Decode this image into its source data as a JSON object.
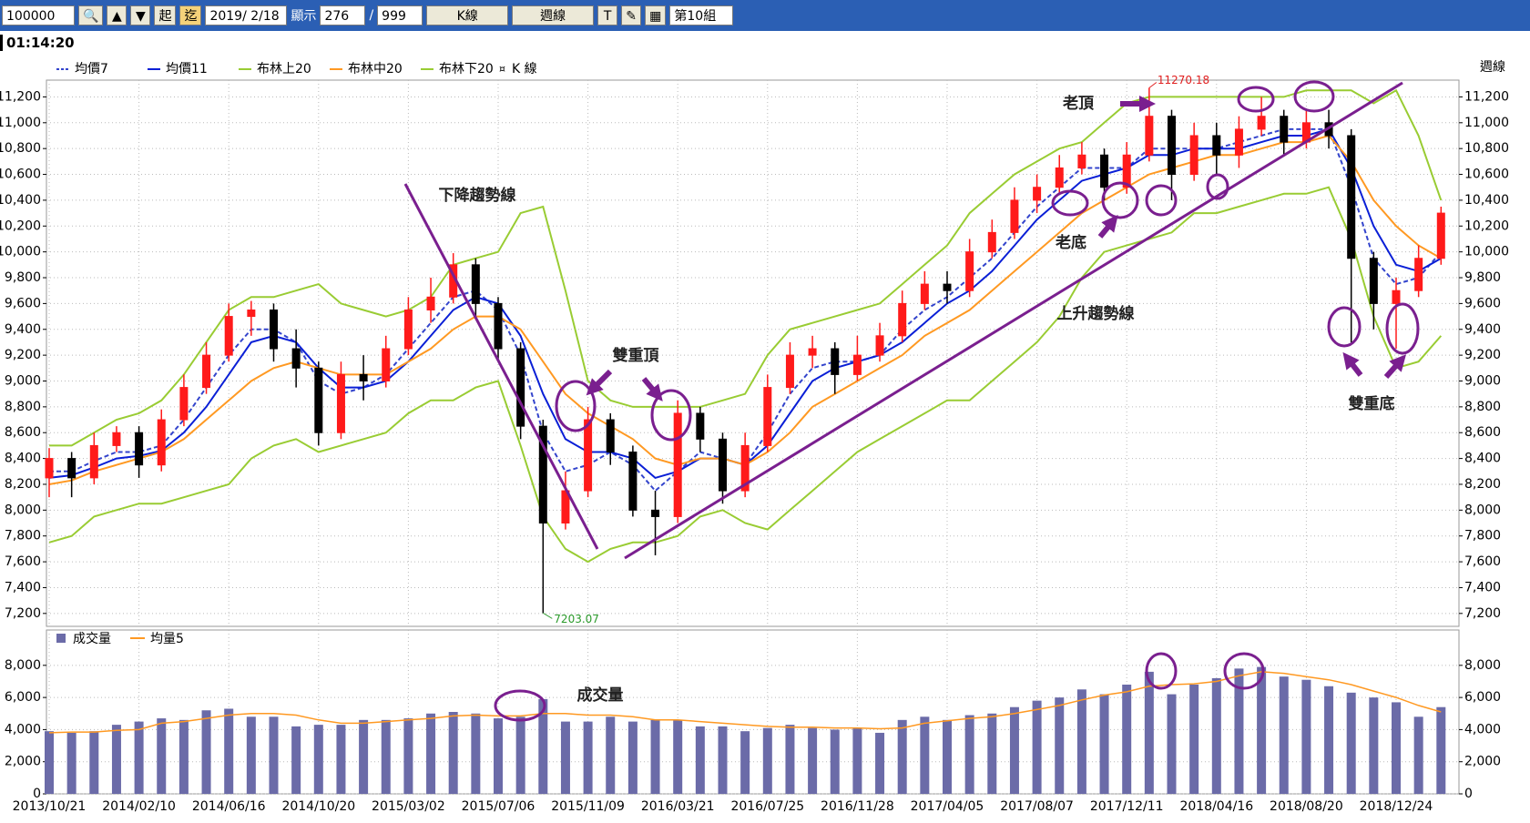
{
  "toolbar": {
    "code": 100000,
    "start_label": "起",
    "end_label": "迄",
    "date": "2019/ 2/18",
    "show_label": "顯示",
    "show_count": 276,
    "separator": "/",
    "max_count": 999,
    "chart_kind": "K線",
    "period": "週線",
    "text_tool": "T",
    "group": "第10組"
  },
  "clock": "01:14:20",
  "chart_data": [
    {
      "type": "candlestick",
      "y_axis_label": "週線",
      "ylim": [
        7100,
        11330
      ],
      "yticks": [
        {
          "value": 7200,
          "label": "7,200"
        },
        {
          "value": 7400,
          "label": "7,400"
        },
        {
          "value": 7600,
          "label": "7,600"
        },
        {
          "value": 7800,
          "label": "7,800"
        },
        {
          "value": 8000,
          "label": "8,000"
        },
        {
          "value": 8200,
          "label": "8,200"
        },
        {
          "value": 8400,
          "label": "8,400"
        },
        {
          "value": 8600,
          "label": "8,600"
        },
        {
          "value": 8800,
          "label": "8,800"
        },
        {
          "value": 9000,
          "label": "9,000"
        },
        {
          "value": 9200,
          "label": "9,200"
        },
        {
          "value": 9400,
          "label": "9,400"
        },
        {
          "value": 9600,
          "label": "9,600"
        },
        {
          "value": 9800,
          "label": "9,800"
        },
        {
          "value": 10000,
          "label": "10,000"
        },
        {
          "value": 10200,
          "label": "10,200"
        },
        {
          "value": 10400,
          "label": "10,400"
        },
        {
          "value": 10600,
          "label": "10,600"
        },
        {
          "value": 10800,
          "label": "10,800"
        },
        {
          "value": 11000,
          "label": "11,000"
        },
        {
          "value": 11200,
          "label": "11,200"
        }
      ],
      "grid": true,
      "candles": {
        "name": "K 線",
        "up_color": "#ff1a1a",
        "down_color": "#000000",
        "open": [
          8250,
          8400,
          8250,
          8500,
          8600,
          8350,
          8700,
          8950,
          9200,
          9500,
          9550,
          9250,
          9100,
          8600,
          9050,
          9000,
          9250,
          9550,
          9650,
          9900,
          9600,
          9250,
          8650,
          7900,
          8150,
          8700,
          8450,
          8000,
          7950,
          8750,
          8550,
          8150,
          8500,
          8950,
          9200,
          9250,
          9050,
          9200,
          9350,
          9600,
          9750,
          9700,
          10000,
          10150,
          10400,
          10500,
          10650,
          10750,
          10500,
          10750,
          11050,
          10600,
          10900,
          10750,
          10950,
          11050,
          10850,
          11000,
          10900,
          9950,
          9600,
          9700,
          9950
        ],
        "high": [
          8480,
          8450,
          8600,
          8650,
          8650,
          8780,
          9050,
          9300,
          9600,
          9620,
          9600,
          9400,
          9150,
          9150,
          9200,
          9350,
          9650,
          9800,
          9990,
          9950,
          9650,
          9300,
          8700,
          8300,
          8800,
          8750,
          8500,
          8150,
          8850,
          8800,
          8600,
          8600,
          9050,
          9300,
          9350,
          9300,
          9350,
          9450,
          9700,
          9850,
          9850,
          10100,
          10250,
          10500,
          10600,
          10750,
          10850,
          10800,
          10850,
          11270.18,
          11100,
          11000,
          11000,
          11050,
          11200,
          11100,
          11100,
          11100,
          10950,
          10000,
          9800,
          10050,
          10350
        ],
        "low": [
          8100,
          8100,
          8200,
          8450,
          8250,
          8300,
          8650,
          8900,
          9150,
          9350,
          9150,
          8950,
          8500,
          8550,
          8850,
          8950,
          9200,
          9450,
          9600,
          9500,
          9150,
          8550,
          7203.07,
          7850,
          8100,
          8350,
          7950,
          7650,
          7900,
          8450,
          8050,
          8100,
          8450,
          8900,
          9100,
          8900,
          9000,
          9150,
          9300,
          9550,
          9600,
          9650,
          9950,
          10100,
          10300,
          10450,
          10600,
          10400,
          10450,
          10700,
          10400,
          10550,
          10600,
          10650,
          10900,
          10750,
          10800,
          10800,
          9300,
          9400,
          9250,
          9650,
          9900
        ],
        "close": [
          8400,
          8250,
          8500,
          8600,
          8350,
          8700,
          8950,
          9200,
          9500,
          9550,
          9250,
          9100,
          8600,
          9050,
          9000,
          9250,
          9550,
          9650,
          9900,
          9600,
          9250,
          8650,
          7900,
          8150,
          8700,
          8450,
          8000,
          7950,
          8750,
          8550,
          8150,
          8500,
          8950,
          9200,
          9250,
          9050,
          9200,
          9350,
          9600,
          9750,
          9700,
          10000,
          10150,
          10400,
          10500,
          10650,
          10750,
          10500,
          10750,
          11050,
          10600,
          10900,
          10750,
          10950,
          11050,
          10850,
          11000,
          10900,
          9950,
          9600,
          9700,
          9950,
          10300
        ]
      },
      "series": [
        {
          "name": "均價7",
          "color": "#3344cc",
          "dashed": true,
          "values": [
            8300,
            8300,
            8380,
            8450,
            8450,
            8500,
            8700,
            8950,
            9200,
            9400,
            9400,
            9300,
            9000,
            8900,
            8950,
            9050,
            9250,
            9450,
            9650,
            9700,
            9550,
            9200,
            8600,
            8300,
            8350,
            8450,
            8350,
            8150,
            8300,
            8450,
            8400,
            8350,
            8600,
            8900,
            9100,
            9150,
            9150,
            9200,
            9400,
            9550,
            9650,
            9800,
            9950,
            10150,
            10350,
            10500,
            10650,
            10650,
            10650,
            10800,
            10800,
            10800,
            10800,
            10850,
            10900,
            10950,
            10950,
            10950,
            10500,
            9950,
            9750,
            9800,
            10000
          ]
        },
        {
          "name": "均價11",
          "color": "#0a1fd6",
          "dashed": false,
          "values": [
            8250,
            8270,
            8330,
            8400,
            8420,
            8460,
            8600,
            8800,
            9050,
            9300,
            9350,
            9300,
            9100,
            8950,
            8950,
            9000,
            9150,
            9350,
            9550,
            9650,
            9600,
            9350,
            8900,
            8550,
            8450,
            8450,
            8400,
            8250,
            8300,
            8400,
            8400,
            8350,
            8500,
            8750,
            9000,
            9100,
            9150,
            9200,
            9300,
            9450,
            9600,
            9700,
            9850,
            10050,
            10250,
            10400,
            10550,
            10600,
            10650,
            10750,
            10750,
            10800,
            10800,
            10800,
            10850,
            10900,
            10900,
            10950,
            10650,
            10200,
            9900,
            9850,
            9950
          ]
        },
        {
          "name": "布林上20",
          "color": "#99cc33",
          "dashed": false,
          "values": [
            8500,
            8500,
            8600,
            8700,
            8750,
            8850,
            9050,
            9300,
            9550,
            9650,
            9650,
            9700,
            9750,
            9600,
            9550,
            9500,
            9550,
            9650,
            9900,
            9950,
            10000,
            10300,
            10350,
            9700,
            9000,
            8850,
            8800,
            8800,
            8800,
            8800,
            8850,
            8900,
            9200,
            9400,
            9450,
            9500,
            9550,
            9600,
            9750,
            9900,
            10050,
            10300,
            10450,
            10600,
            10700,
            10800,
            10850,
            11000,
            11150,
            11200,
            11200,
            11200,
            11200,
            11200,
            11200,
            11200,
            11250,
            11250,
            11250,
            11150,
            11250,
            10900,
            10400
          ]
        },
        {
          "name": "布林中20",
          "color": "#ff9922",
          "dashed": false,
          "values": [
            8200,
            8230,
            8300,
            8350,
            8400,
            8450,
            8550,
            8700,
            8850,
            9000,
            9100,
            9150,
            9100,
            9050,
            9050,
            9050,
            9150,
            9250,
            9400,
            9500,
            9500,
            9400,
            9150,
            8900,
            8750,
            8650,
            8550,
            8400,
            8350,
            8400,
            8400,
            8350,
            8450,
            8600,
            8800,
            8900,
            9000,
            9100,
            9200,
            9350,
            9450,
            9550,
            9700,
            9850,
            10000,
            10150,
            10300,
            10400,
            10500,
            10600,
            10650,
            10700,
            10750,
            10750,
            10800,
            10850,
            10850,
            10900,
            10700,
            10400,
            10200,
            10050,
            9950
          ]
        },
        {
          "name": "布林下20",
          "color": "#99cc33",
          "dashed": false,
          "values": [
            7750,
            7800,
            7950,
            8000,
            8050,
            8050,
            8100,
            8150,
            8200,
            8400,
            8500,
            8550,
            8450,
            8500,
            8550,
            8600,
            8750,
            8850,
            8850,
            8950,
            9000,
            8500,
            7950,
            7700,
            7600,
            7700,
            7750,
            7750,
            7800,
            7950,
            8000,
            7900,
            7850,
            8000,
            8150,
            8300,
            8450,
            8550,
            8650,
            8750,
            8850,
            8850,
            9000,
            9150,
            9300,
            9500,
            9800,
            10000,
            10050,
            10100,
            10150,
            10300,
            10300,
            10350,
            10400,
            10450,
            10450,
            10500,
            10100,
            9500,
            9100,
            9150,
            9350
          ]
        }
      ],
      "annotations": [
        "下降趨勢線",
        "雙重頂",
        "老頂",
        "老底",
        "上升趨勢線",
        "雙重底"
      ]
    },
    {
      "type": "bar",
      "categories": [
        "2013/10/21",
        null,
        null,
        null,
        "2014/02/10",
        null,
        null,
        null,
        "2014/06/16",
        null,
        null,
        null,
        "2014/10/20",
        null,
        null,
        null,
        "2015/03/02",
        null,
        null,
        null,
        "2015/07/06",
        null,
        null,
        null,
        "2015/11/09",
        null,
        null,
        null,
        "2016/03/21",
        null,
        null,
        null,
        "2016/07/25",
        null,
        null,
        null,
        "2016/11/28",
        null,
        null,
        null,
        "2017/04/05",
        null,
        null,
        null,
        "2017/08/07",
        null,
        null,
        null,
        "2017/12/11",
        null,
        null,
        null,
        "2018/04/16",
        null,
        null,
        null,
        "2018/08/20",
        null,
        null,
        null,
        "2018/12/24",
        null,
        null
      ],
      "ylim": [
        0,
        10200
      ],
      "yticks": [
        0,
        {
          "value": 2000,
          "label": "2,000"
        },
        {
          "value": 4000,
          "label": "4,000"
        },
        {
          "value": 6000,
          "label": "6,000"
        },
        {
          "value": 8000,
          "label": "8,000"
        }
      ],
      "grid": true,
      "series": [
        {
          "name": "成交量",
          "color": "#6b6ba8",
          "kind": "bar",
          "values": [
            3900,
            3800,
            3900,
            4300,
            4500,
            4700,
            4600,
            5200,
            5300,
            4800,
            4800,
            4200,
            4300,
            4300,
            4600,
            4600,
            4700,
            5000,
            5100,
            5000,
            4700,
            4800,
            5900,
            4500,
            4500,
            4800,
            4500,
            4600,
            4600,
            4200,
            4200,
            3900,
            4100,
            4300,
            4100,
            4000,
            4100,
            3800,
            4600,
            4800,
            4600,
            4900,
            5000,
            5400,
            5800,
            6000,
            6500,
            6200,
            6800,
            7600,
            6200,
            6800,
            7200,
            7800,
            7900,
            7300,
            7100,
            6700,
            6300,
            6000,
            5700,
            4800,
            5400
          ]
        },
        {
          "name": "均量5",
          "color": "#ff9922",
          "kind": "line",
          "values": [
            3800,
            3850,
            3850,
            3950,
            4000,
            4400,
            4500,
            4700,
            4900,
            5000,
            5000,
            4900,
            4600,
            4400,
            4400,
            4500,
            4600,
            4700,
            4850,
            4900,
            4850,
            4850,
            5000,
            5000,
            4900,
            4900,
            4800,
            4600,
            4600,
            4500,
            4400,
            4300,
            4200,
            4150,
            4150,
            4100,
            4100,
            4050,
            4100,
            4400,
            4550,
            4700,
            4800,
            5000,
            5250,
            5500,
            5850,
            6150,
            6350,
            6700,
            6800,
            6850,
            7000,
            7350,
            7600,
            7500,
            7300,
            7100,
            6800,
            6400,
            6000,
            5500,
            5100
          ]
        }
      ],
      "annotations": [
        "成交量"
      ]
    }
  ]
}
